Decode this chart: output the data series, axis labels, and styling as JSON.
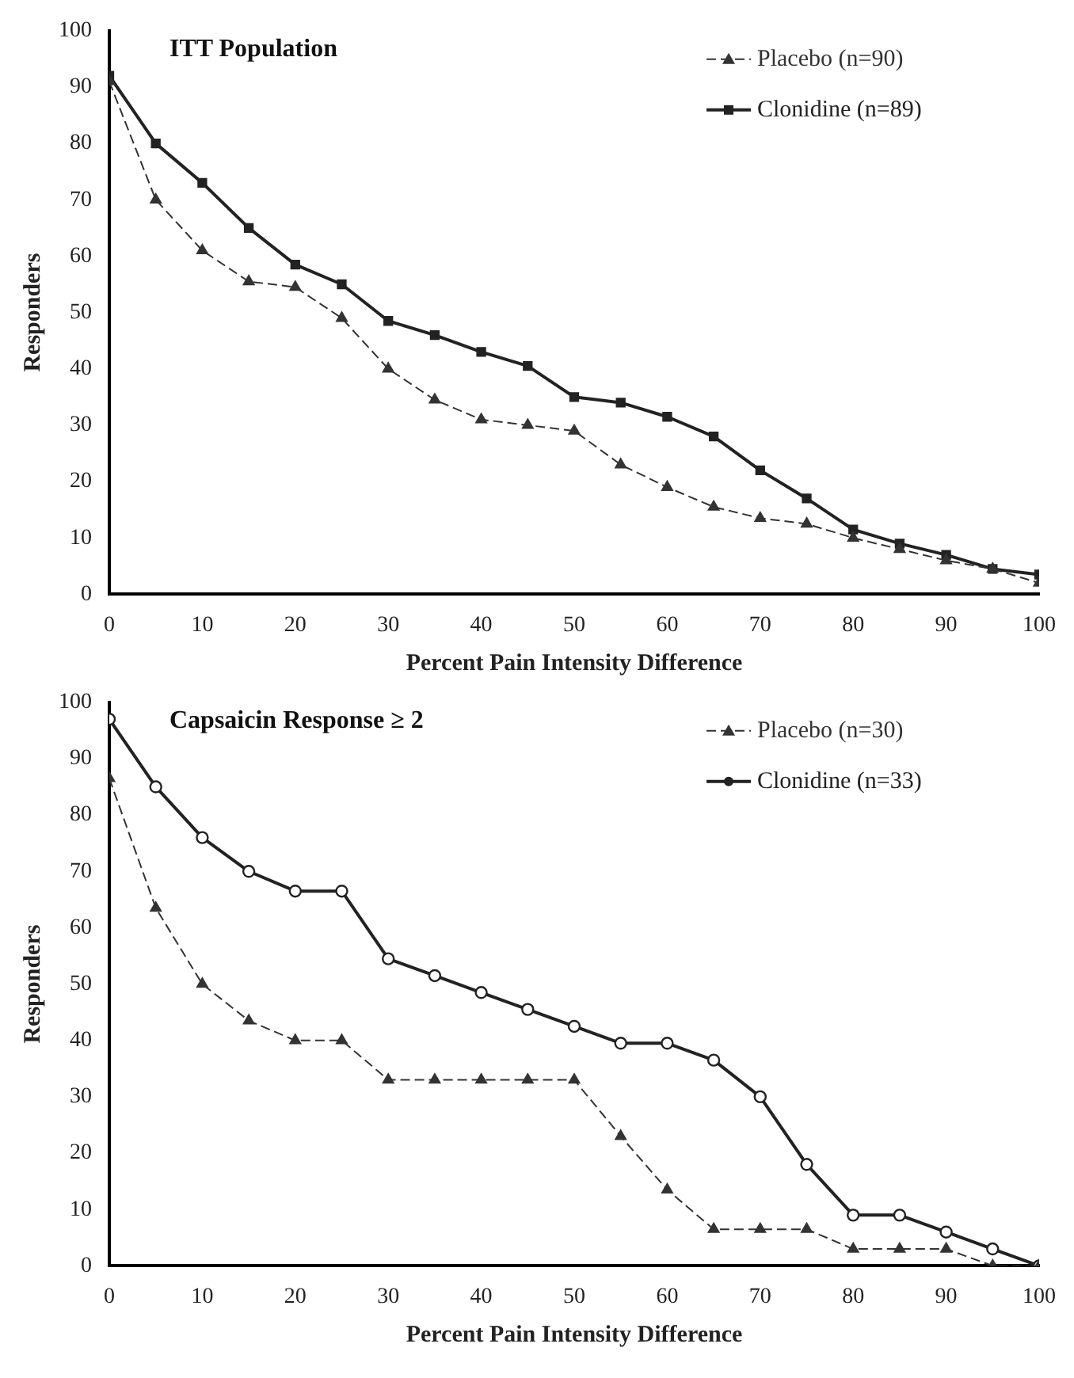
{
  "chart_data": [
    {
      "type": "line",
      "title": "ITT Population",
      "xlabel": "Percent Pain Intensity Difference",
      "ylabel": "Responders",
      "x": [
        0,
        5,
        10,
        15,
        20,
        25,
        30,
        35,
        40,
        45,
        50,
        55,
        60,
        65,
        70,
        75,
        80,
        85,
        90,
        95,
        100
      ],
      "xlim": [
        0,
        100
      ],
      "xticks": [
        0,
        10,
        20,
        30,
        40,
        50,
        60,
        70,
        80,
        90,
        100
      ],
      "ylim": [
        0,
        100
      ],
      "yticks": [
        0,
        10,
        20,
        30,
        40,
        50,
        60,
        70,
        80,
        90,
        100
      ],
      "grid": false,
      "legend": "top right",
      "series": [
        {
          "name": "Placebo (n=90)",
          "color": "#333333",
          "marker": "triangle",
          "line_style": "dashed",
          "values": [
            91,
            70,
            61,
            55.5,
            54.5,
            49,
            40,
            34.5,
            31,
            30,
            29,
            23,
            19,
            15.5,
            13.5,
            12.5,
            10,
            8,
            6,
            4.5,
            2
          ]
        },
        {
          "name": "Clonidine (n=89)",
          "color": "#222222",
          "marker": "square",
          "line_style": "solid",
          "values": [
            92,
            80,
            73,
            65,
            58.5,
            55,
            48.5,
            46,
            43,
            40.5,
            35,
            34,
            31.5,
            28,
            22,
            17,
            11.5,
            9,
            7,
            4.5,
            3.5
          ]
        }
      ]
    },
    {
      "type": "line",
      "title": "Capsaicin Response ≥ 2",
      "xlabel": "Percent Pain Intensity Difference",
      "ylabel": "Responders",
      "x": [
        0,
        5,
        10,
        15,
        20,
        25,
        30,
        35,
        40,
        45,
        50,
        55,
        60,
        65,
        70,
        75,
        80,
        85,
        90,
        95,
        100
      ],
      "xlim": [
        0,
        100
      ],
      "xticks": [
        0,
        10,
        20,
        30,
        40,
        50,
        60,
        70,
        80,
        90,
        100
      ],
      "ylim": [
        0,
        100
      ],
      "yticks": [
        0,
        10,
        20,
        30,
        40,
        50,
        60,
        70,
        80,
        90,
        100
      ],
      "grid": false,
      "legend": "top right",
      "series": [
        {
          "name": "Placebo (n=30)",
          "color": "#333333",
          "marker": "triangle",
          "line_style": "dashed",
          "values": [
            86.5,
            63.5,
            50,
            43.5,
            40,
            40,
            33,
            33,
            33,
            33,
            33,
            23,
            13.5,
            6.5,
            6.5,
            6.5,
            3,
            3,
            3,
            0,
            0
          ]
        },
        {
          "name": "Clonidine (n=33)",
          "color": "#222222",
          "marker": "circle",
          "line_style": "solid",
          "values": [
            97,
            85,
            76,
            70,
            66.5,
            66.5,
            54.5,
            51.5,
            48.5,
            45.5,
            42.5,
            39.5,
            39.5,
            36.5,
            30,
            18,
            9,
            9,
            6,
            3,
            0
          ]
        }
      ]
    }
  ]
}
